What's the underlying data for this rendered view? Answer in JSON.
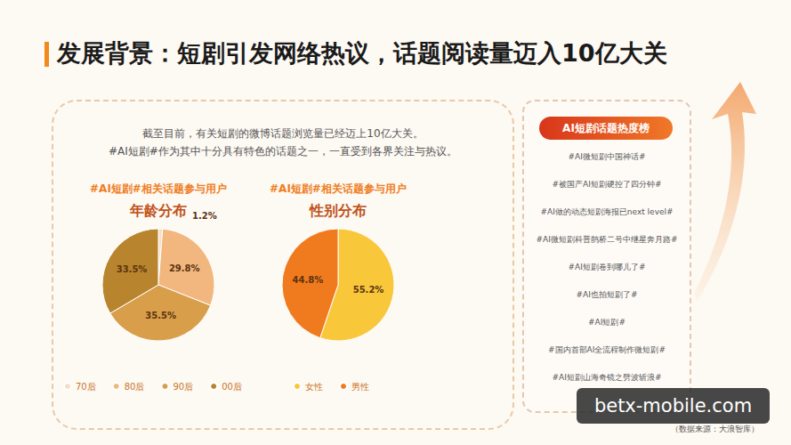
{
  "header": {
    "title": "发展背景：短剧引发网络热议，话题阅读量迈入10亿大关"
  },
  "intro": [
    "截至目前，有关短剧的微博话题浏览量已经迈上10亿大关。",
    "#AI短剧#作为其中十分具有特色的话题之一，一直受到各界关注与热议。"
  ],
  "chart_data": [
    {
      "type": "pie",
      "subtitle": "#AI短剧#相关话题参与用户",
      "title": "年龄分布",
      "categories": [
        "70后",
        "80后",
        "90后",
        "00后"
      ],
      "values": [
        1.2,
        29.8,
        35.5,
        33.5
      ],
      "value_labels": [
        "1.2%",
        "29.8%",
        "35.5%",
        "33.5%"
      ],
      "colors": [
        "#f6dfc4",
        "#f2b77e",
        "#d99e4a",
        "#b8852e"
      ],
      "data_labels": true,
      "legend": "bottom"
    },
    {
      "type": "pie",
      "subtitle": "#AI短剧#相关话题参与用户",
      "title": "性别分布",
      "categories": [
        "女性",
        "男性"
      ],
      "values": [
        55.2,
        44.8
      ],
      "value_labels": [
        "55.2%",
        "44.8%"
      ],
      "colors": [
        "#f9c73a",
        "#f07a1e"
      ],
      "data_labels": true,
      "legend": "bottom"
    }
  ],
  "ranking": {
    "title": "AI短剧话题热度榜",
    "items": [
      "#AI微短剧中国神话#",
      "#被国产AI短剧硬控了四分钟#",
      "#AI做的动态短剧海报已next level#",
      "#AI微短剧科普鹊桥二号中继星奔月路#",
      "#AI短剧卷到哪儿了#",
      "#AI也拍短剧了#",
      "#AI短剧#",
      "#国内首部AI全流程制作微短剧#",
      "#AI短剧山海奇镜之劈波斩浪#"
    ]
  },
  "source": "（数据来源：大浪智库）",
  "watermark": "betx-mobile.com"
}
